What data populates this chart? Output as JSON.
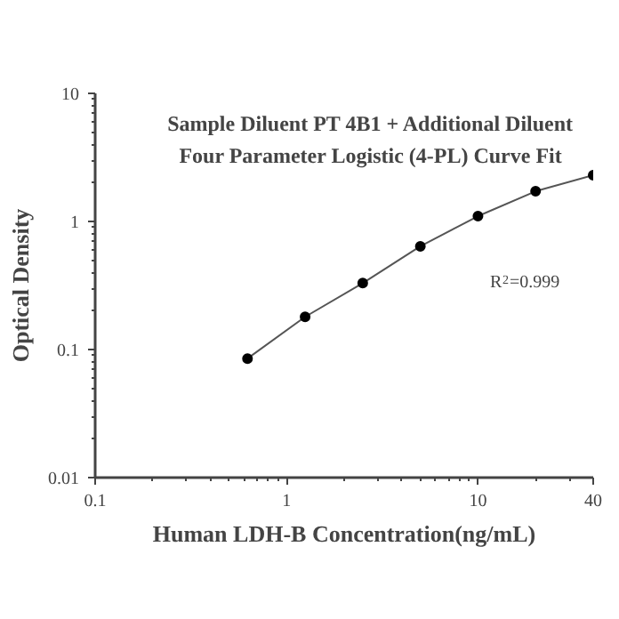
{
  "chart_data": {
    "type": "line",
    "title": "Sample Diluent PT 4B1 + Additional Diluent",
    "subtitle": "Four Parameter Logistic (4-PL) Curve Fit",
    "xlabel": "Human LDH-B Concentration(ng/mL)",
    "ylabel": "Optical Density",
    "annotations": [
      "R$^{2}$=0.999"
    ],
    "x": [
      0.625,
      1.25,
      2.5,
      5,
      10,
      20,
      40
    ],
    "series": [
      {
        "color": "#000000",
        "values": [
          0.085,
          0.18,
          0.33,
          0.64,
          1.1,
          1.72,
          2.3
        ]
      }
    ],
    "log": "xy",
    "marker": "circle",
    "line_style": "solid",
    "xlim": [
      0.1,
      40
    ],
    "ylim": [
      0.01,
      10
    ],
    "xticks": [
      0.1,
      {
        "value": 0.2,
        "label": null
      },
      {
        "value": 0.3,
        "label": null
      },
      {
        "value": 0.4,
        "label": null
      },
      {
        "value": 0.5,
        "label": null
      },
      {
        "value": 0.6,
        "label": null
      },
      {
        "value": 0.7,
        "label": null
      },
      {
        "value": 0.8,
        "label": null
      },
      {
        "value": 0.9,
        "label": null
      },
      1,
      {
        "value": 2,
        "label": null
      },
      {
        "value": 3,
        "label": null
      },
      {
        "value": 4,
        "label": null
      },
      {
        "value": 5,
        "label": null
      },
      {
        "value": 6,
        "label": null
      },
      {
        "value": 7,
        "label": null
      },
      {
        "value": 8,
        "label": null
      },
      {
        "value": 9,
        "label": null
      },
      10,
      {
        "value": 20,
        "label": null
      },
      {
        "value": 30,
        "label": null
      },
      40
    ],
    "yticks": [
      0.01,
      {
        "value": 0.02,
        "label": null
      },
      {
        "value": 0.03,
        "label": null
      },
      {
        "value": 0.04,
        "label": null
      },
      {
        "value": 0.05,
        "label": null
      },
      {
        "value": 0.06,
        "label": null
      },
      {
        "value": 0.07,
        "label": null
      },
      {
        "value": 0.08,
        "label": null
      },
      {
        "value": 0.09,
        "label": null
      },
      0.1,
      {
        "value": 0.2,
        "label": null
      },
      {
        "value": 0.3,
        "label": null
      },
      {
        "value": 0.4,
        "label": null
      },
      {
        "value": 0.5,
        "label": null
      },
      {
        "value": 0.6,
        "label": null
      },
      {
        "value": 0.7,
        "label": null
      },
      {
        "value": 0.8,
        "label": null
      },
      {
        "value": 0.9,
        "label": null
      },
      1,
      {
        "value": 2,
        "label": null
      },
      {
        "value": 3,
        "label": null
      },
      {
        "value": 4,
        "label": null
      },
      {
        "value": 5,
        "label": null
      },
      {
        "value": 6,
        "label": null
      },
      {
        "value": 7,
        "label": null
      },
      {
        "value": 8,
        "label": null
      },
      {
        "value": 9,
        "label": null
      },
      10
    ]
  }
}
